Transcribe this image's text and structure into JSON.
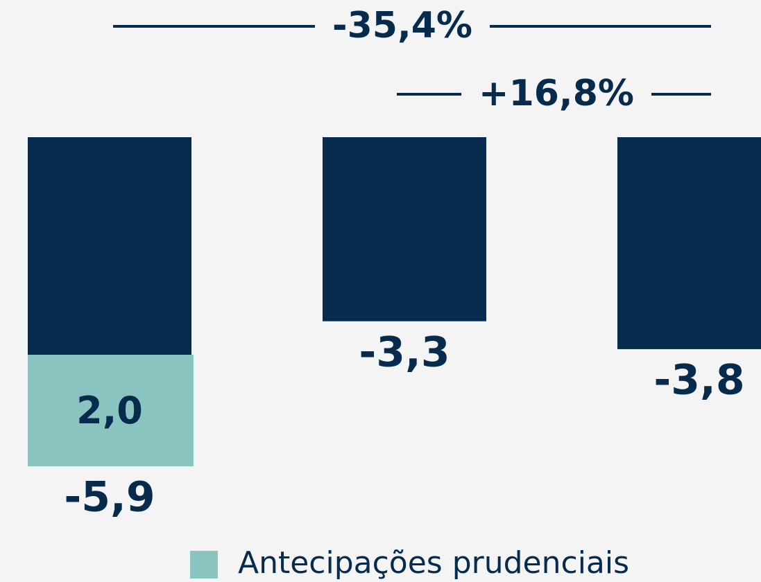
{
  "chart_data": {
    "type": "bar",
    "values": [
      -5.9,
      -3.3,
      -3.8
    ],
    "value_labels": [
      "-5,9",
      "-3,3",
      "-3,8"
    ],
    "color": "#062b4d",
    "series": [
      {
        "name": "Antecipações prudenciais",
        "color": "#8ac4c0",
        "values": [
          2.0,
          null,
          null
        ],
        "value_labels": [
          "2,0",
          null,
          null
        ]
      }
    ],
    "annotations": [
      {
        "value": -35.4,
        "label": "-35,4%"
      },
      {
        "value": 16.8,
        "label": "+16,8%"
      }
    ]
  }
}
